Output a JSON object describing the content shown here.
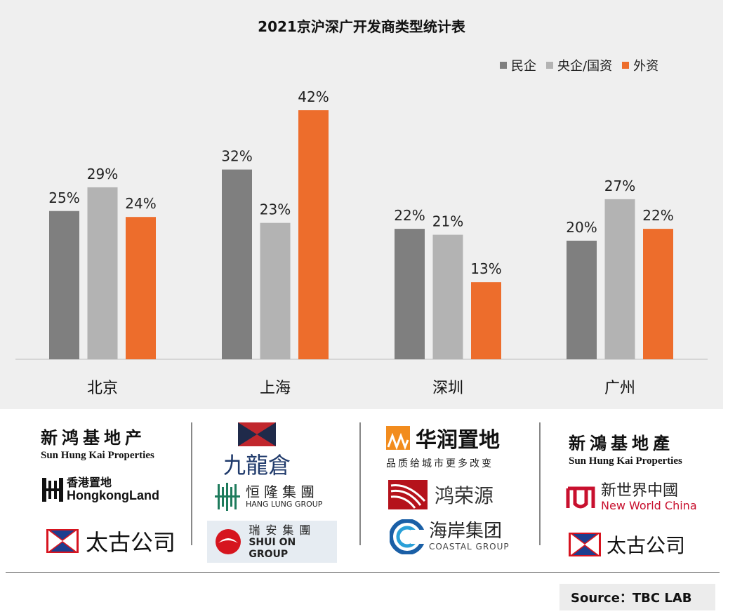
{
  "chart_data": {
    "type": "bar",
    "title": "2021京沪深广开发商类型统计表",
    "categories": [
      "北京",
      "上海",
      "深圳",
      "广州"
    ],
    "series": [
      {
        "name": "民企",
        "color": "#7f7f7f",
        "values": [
          25,
          32,
          22,
          20
        ],
        "labels": [
          "25%",
          "32%",
          "22%",
          "20%"
        ]
      },
      {
        "name": "央企/国资",
        "color": "#b3b3b3",
        "values": [
          29,
          23,
          21,
          27
        ],
        "labels": [
          "29%",
          "23%",
          "21%",
          "27%"
        ]
      },
      {
        "name": "外资",
        "color": "#ed6d2c",
        "values": [
          24,
          42,
          13,
          22
        ],
        "labels": [
          "24%",
          "42%",
          "13%",
          "22%"
        ]
      }
    ],
    "ylim": [
      0,
      45
    ],
    "grid": false,
    "legend_position": "top-right",
    "value_format": "percent"
  },
  "logos": {
    "beijing": {
      "shk_zh": "新鸿基地产",
      "shk_en": "Sun Hung Kai Properties",
      "hkland_zh": "香港置地",
      "hkland_en": "HongkongLand",
      "swire_zh": "太古公司"
    },
    "shanghai": {
      "wharf_zh": "九龍倉",
      "hanglung_zh": "恒隆集團",
      "hanglung_en": "HANG LUNG GROUP",
      "shuion_zh": "瑞安集團",
      "shuion_en": "SHUI ON GROUP"
    },
    "shenzhen": {
      "crland_zh": "华润置地",
      "crland_tagline": "品质给城市更多改变",
      "hongrongyuan_zh": "鸿荣源",
      "coastal_zh": "海岸集团",
      "coastal_en": "COASTAL GROUP"
    },
    "guangzhou": {
      "shk_zh": "新鴻基地產",
      "shk_en": "Sun Hung Kai Properties",
      "nwc_zh": "新世界中國",
      "nwc_en": "New World China",
      "swire_zh": "太古公司"
    }
  },
  "source": "Source：TBC LAB",
  "colors": {
    "panel": "#efefef",
    "swire_red": "#d7141f",
    "swire_blue": "#1d3e8f",
    "wharf_red": "#c1272d",
    "wharf_navy": "#1f2a4a",
    "crland_orange": "#f28c1e",
    "hongrongyuan_red": "#b5121b",
    "coastal_blue": "#1a5fa6",
    "nwc_red": "#c8102e",
    "shuion_red": "#d6151e"
  }
}
